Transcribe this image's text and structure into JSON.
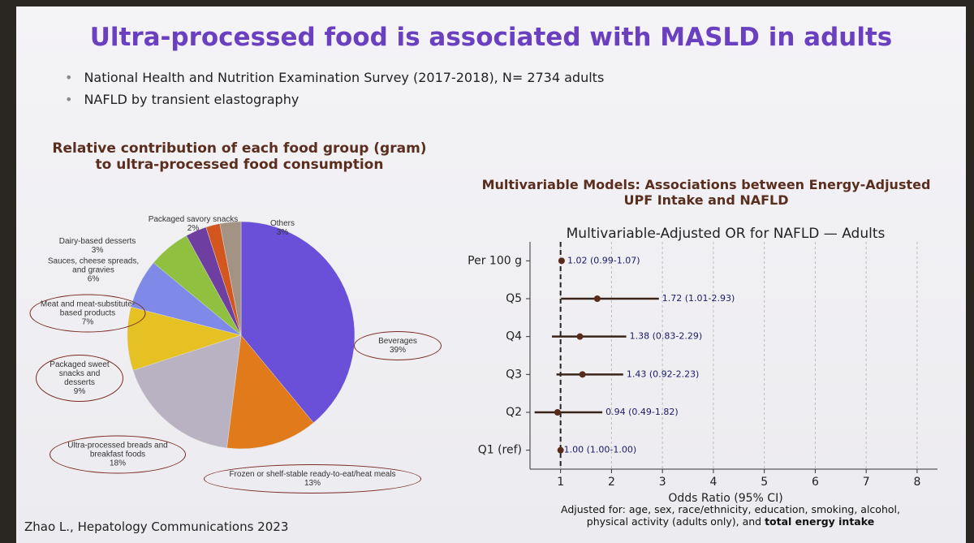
{
  "slide": {
    "title": "Ultra-processed food is associated with MASLD in adults",
    "bullets": [
      "National Health and Nutrition Examination Survey (2017-2018), N= 2734 adults",
      "NAFLD by transient elastography"
    ],
    "citation": "Zhao L., Hepatology Communications 2023"
  },
  "chart_data": [
    {
      "type": "pie",
      "title": "Relative contribution of each food group (gram) to ultra-processed food consumption",
      "categories": [
        "Beverages",
        "Frozen or shelf-stable ready-to-eat/heat meals",
        "Ultra-processed breads and breakfast foods",
        "Packaged sweet snacks and desserts",
        "Meat and meat-substitute-based products",
        "Sauces, cheese spreads, and gravies",
        "Dairy-based desserts",
        "Packaged savory snacks",
        "Others"
      ],
      "values": [
        39,
        13,
        18,
        9,
        7,
        6,
        3,
        2,
        3
      ],
      "value_labels": [
        "39%",
        "13%",
        "18%",
        "9%",
        "7%",
        "6%",
        "3%",
        "2%",
        "3%"
      ],
      "colors": [
        "#6a4fd8",
        "#e07a1a",
        "#b9b2c2",
        "#e6c123",
        "#7f8ae8",
        "#8fc040",
        "#6e3ea0",
        "#d2561e",
        "#a39384"
      ]
    },
    {
      "type": "forest",
      "heading": "Multivariable Models: Associations between Energy-Adjusted UPF Intake and NAFLD",
      "title": "Multivariable-Adjusted OR for NAFLD — Adults",
      "x_label": "Odds Ratio (95% CI)",
      "categories": [
        "Per 100 g",
        "Q5",
        "Q4",
        "Q3",
        "Q2",
        "Q1 (ref)"
      ],
      "values": [
        1.02,
        1.72,
        1.38,
        1.43,
        0.94,
        1.0
      ],
      "lower": [
        0.99,
        1.01,
        0.83,
        0.92,
        0.49,
        1.0
      ],
      "upper": [
        1.07,
        2.93,
        2.29,
        2.23,
        1.82,
        1.0
      ],
      "value_labels": [
        "1.02 (0.99-1.07)",
        "1.72 (1.01-2.93)",
        "1.38 (0.83-2.29)",
        "1.43 (0.92-2.23)",
        "0.94 (0.49-1.82)",
        "1.00 (1.00-1.00)"
      ],
      "xlim": [
        0.4,
        8.4
      ],
      "xticks": [
        1,
        2,
        3,
        4,
        5,
        6,
        7,
        8
      ],
      "ref_line": 1,
      "grid": true,
      "color": "#5a2a1a",
      "footnote": [
        "Adjusted for: age, sex, race/ethnicity, education, smoking, alcohol, physical activity (adults only), and ",
        "total energy intake"
      ]
    }
  ]
}
